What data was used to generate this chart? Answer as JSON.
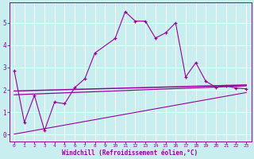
{
  "bg_color": "#c8eef0",
  "grid_color": "#ffffff",
  "line_color": "#990099",
  "xlabel": "Windchill (Refroidissement éolien,°C)",
  "xlim": [
    -0.5,
    23.5
  ],
  "ylim": [
    -0.3,
    5.9
  ],
  "yticks": [
    0,
    1,
    2,
    3,
    4,
    5
  ],
  "xticks": [
    0,
    1,
    2,
    3,
    4,
    5,
    6,
    7,
    8,
    9,
    10,
    11,
    12,
    13,
    14,
    15,
    16,
    17,
    18,
    19,
    20,
    21,
    22,
    23
  ],
  "zigzag_x": [
    0,
    1,
    2,
    3,
    4,
    5,
    6,
    7,
    8,
    10,
    11,
    12,
    13,
    14,
    15,
    16,
    17,
    18,
    19,
    20,
    21,
    22,
    23
  ],
  "zigzag_y": [
    2.85,
    0.55,
    1.75,
    0.18,
    1.45,
    1.38,
    2.1,
    2.5,
    3.65,
    4.3,
    5.5,
    5.08,
    5.08,
    4.32,
    4.55,
    5.0,
    2.58,
    3.22,
    2.38,
    2.12,
    2.18,
    2.08,
    2.05
  ],
  "line1_x": [
    0,
    23
  ],
  "line1_y": [
    1.78,
    2.18
  ],
  "line2_x": [
    0,
    23
  ],
  "line2_y": [
    1.95,
    2.22
  ],
  "line3_x": [
    0,
    23
  ],
  "line3_y": [
    0.02,
    1.88
  ]
}
